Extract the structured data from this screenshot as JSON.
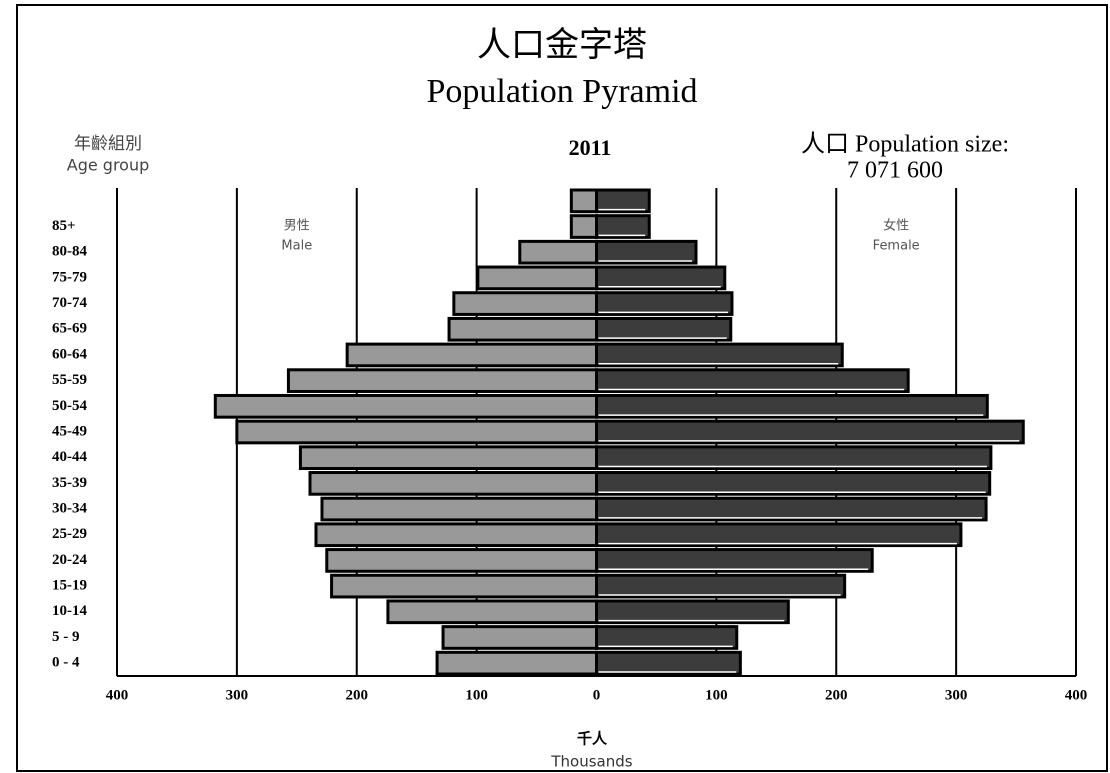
{
  "chart_data": {
    "type": "pyramid",
    "title": "人口金字塔",
    "subtitle": "Population Pyramid",
    "y_axis_label": "年齡組別",
    "y_axis_label_en": "Age group",
    "year": "2011",
    "population_label": "人口 Population size:",
    "population_value": "7 071 600",
    "x_axis_label": "千人",
    "x_axis_label_en": "Thousands",
    "categories": [
      null,
      "85+",
      "80-84",
      "75-79",
      "70-74",
      "65-69",
      "60-64",
      "55-59",
      "50-54",
      "45-49",
      "40-44",
      "35-39",
      "30-34",
      "25-29",
      "20-24",
      "15-19",
      "10-14",
      "5 - 9",
      "0 - 4"
    ],
    "series": [
      {
        "name": "男性",
        "name_en": "Male",
        "side": "left",
        "color": "#999999",
        "values": [
          21,
          21,
          64,
          99,
          119,
          123,
          208,
          257,
          318,
          300,
          247,
          239,
          229,
          234,
          225,
          221,
          174,
          128,
          133
        ]
      },
      {
        "name": "女性",
        "name_en": "Female",
        "side": "right",
        "color": "#3c3c3c",
        "values": [
          44,
          44,
          83,
          107,
          113,
          112,
          205,
          260,
          326,
          356,
          329,
          328,
          325,
          304,
          230,
          207,
          160,
          117,
          120
        ]
      }
    ],
    "xlim": [
      -400,
      400
    ],
    "xticks": [
      {
        "value": -400,
        "label": "400"
      },
      {
        "value": -300,
        "label": "300"
      },
      {
        "value": -200,
        "label": "200"
      },
      {
        "value": -100,
        "label": "100"
      },
      0,
      100,
      200,
      300,
      400
    ],
    "grid": true
  }
}
